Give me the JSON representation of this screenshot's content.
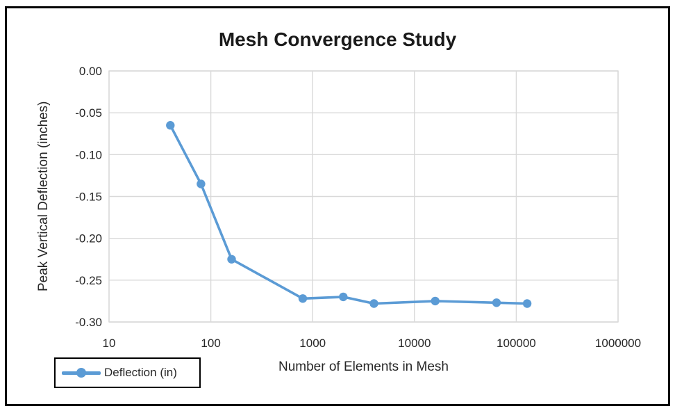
{
  "colors": {
    "series": "#5B9BD5",
    "grid": "#D9D9D9",
    "text": "#262626",
    "title_text": "#1a1a1a",
    "frame_border": "#000000",
    "background": "#ffffff"
  },
  "legend": {
    "label": "Deflection (in)"
  },
  "chart_data": {
    "type": "line",
    "title": "Mesh Convergence Study",
    "xlabel": "Number of Elements in Mesh",
    "ylabel": "Peak Vertical Deflection (inches)",
    "x_scale": "log10",
    "xlim": [
      10,
      1000000
    ],
    "ylim": [
      -0.3,
      0.0
    ],
    "x_ticks": [
      10,
      100,
      1000,
      10000,
      100000,
      1000000
    ],
    "y_ticks": [
      "0.00",
      "-0.05",
      "-0.10",
      "-0.15",
      "-0.20",
      "-0.25",
      "-0.30"
    ],
    "grid": true,
    "legend_position": "bottom-left",
    "series": [
      {
        "name": "Deflection (in)",
        "color": "#5B9BD5",
        "marker": "circle",
        "x": [
          40,
          80,
          160,
          800,
          2000,
          4000,
          16000,
          64000,
          128000
        ],
        "y": [
          -0.065,
          -0.135,
          -0.225,
          -0.272,
          -0.27,
          -0.278,
          -0.275,
          -0.277,
          -0.278
        ]
      }
    ]
  }
}
